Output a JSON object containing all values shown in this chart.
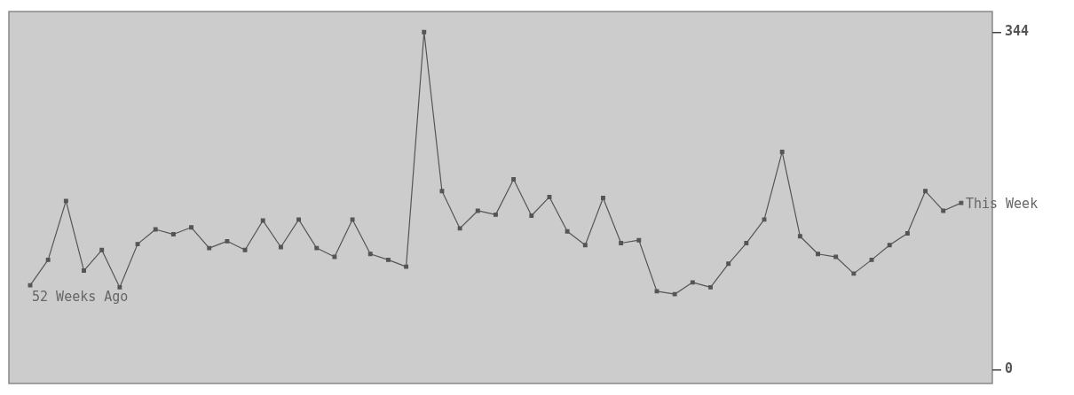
{
  "chart_data": {
    "type": "line",
    "categories": [
      null,
      null,
      null,
      null,
      null,
      null,
      null,
      null,
      null,
      null,
      null,
      null,
      null,
      null,
      null,
      null,
      null,
      null,
      null,
      null,
      null,
      null,
      null,
      null,
      null,
      null,
      null,
      null,
      null,
      null,
      null,
      null,
      null,
      null,
      null,
      null,
      null,
      null,
      null,
      null,
      null,
      null,
      null,
      null,
      null,
      null,
      null,
      null,
      null,
      null,
      null,
      null,
      null
    ],
    "series": [
      {
        "color": "#555555",
        "values": [
          86,
          112,
          172,
          101,
          122,
          84,
          128,
          143,
          138,
          145,
          124,
          131,
          122,
          152,
          125,
          153,
          124,
          115,
          153,
          118,
          112,
          105,
          344,
          182,
          144,
          162,
          158,
          194,
          157,
          176,
          141,
          127,
          175,
          129,
          132,
          80,
          77,
          89,
          84,
          108,
          129,
          153,
          222,
          136,
          118,
          115,
          98,
          112,
          127,
          139,
          182,
          162,
          170
        ]
      }
    ],
    "ylim": [
      -14,
      365
    ],
    "yticks": [
      0,
      344
    ],
    "annotations": [
      "52 Weeks Ago",
      "This Week"
    ],
    "marker": "square",
    "grid": false,
    "legend": false
  }
}
